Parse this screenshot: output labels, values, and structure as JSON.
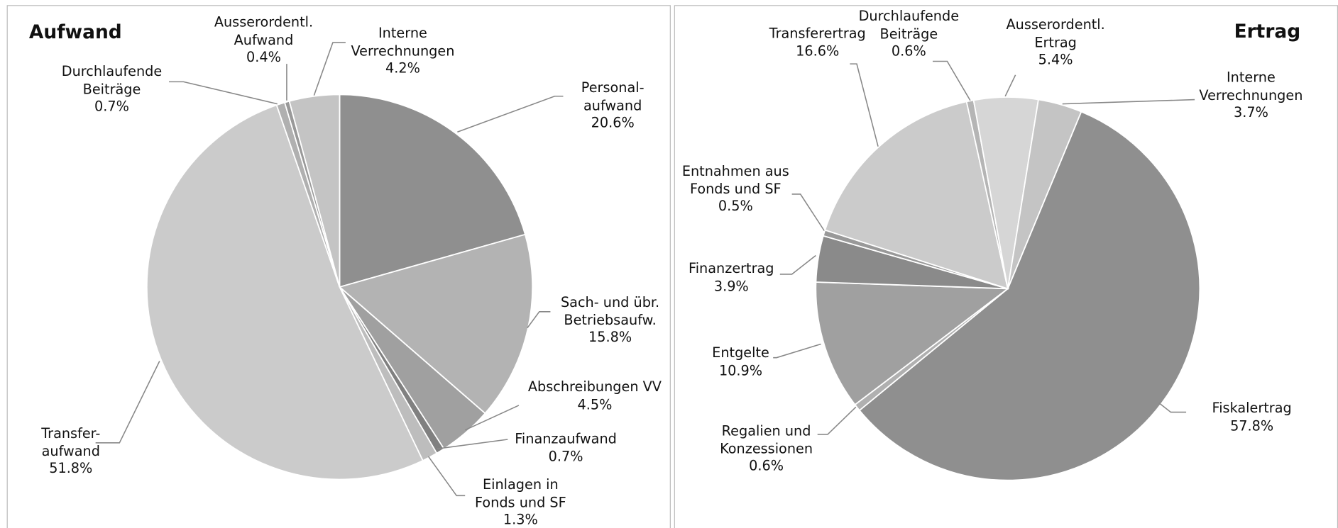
{
  "chart_data": [
    {
      "type": "pie",
      "title": "Aufwand",
      "categories": [
        "Personal-\naufwand",
        "Sach- und übr.\nBetriebsaufw.",
        "Abschreibungen VV",
        "Finanzaufwand",
        "Einlagen in\nFonds und SF",
        "Transfer-\naufwand",
        "Durchlaufende\nBeiträge",
        "Ausserordentl.\nAufwand",
        "Interne\nVerrechnungen"
      ],
      "values": [
        20.6,
        15.8,
        4.5,
        0.7,
        1.3,
        51.8,
        0.7,
        0.4,
        4.2
      ],
      "value_labels": [
        "20.6%",
        "15.8%",
        "4.5%",
        "0.7%",
        "1.3%",
        "51.8%",
        "0.7%",
        "0.4%",
        "4.2%"
      ],
      "colors": [
        "#8f8f8f",
        "#b3b3b3",
        "#a0a0a0",
        "#808080",
        "#bdbdbd",
        "#cbcbcb",
        "#b0b0b0",
        "#999999",
        "#c4c4c4"
      ]
    },
    {
      "type": "pie",
      "title": "Ertrag",
      "categories": [
        "Fiskalertrag",
        "Regalien und\nKonzessionen",
        "Entgelte",
        "Finanzertrag",
        "Entnahmen aus\nFonds und SF",
        "Transferertrag",
        "Durchlaufende\nBeiträge",
        "Ausserordentl.\nErtrag",
        "Interne\nVerrechnungen"
      ],
      "values": [
        57.8,
        0.6,
        10.9,
        3.9,
        0.5,
        16.6,
        0.6,
        5.4,
        3.7
      ],
      "value_labels": [
        "57.8%",
        "0.6%",
        "10.9%",
        "3.9%",
        "0.5%",
        "16.6%",
        "0.6%",
        "5.4%",
        "3.7%"
      ],
      "colors": [
        "#8f8f8f",
        "#b0b0b0",
        "#a0a0a0",
        "#8a8a8a",
        "#999999",
        "#cbcbcb",
        "#b5b5b5",
        "#d6d6d6",
        "#c4c4c4"
      ]
    }
  ]
}
